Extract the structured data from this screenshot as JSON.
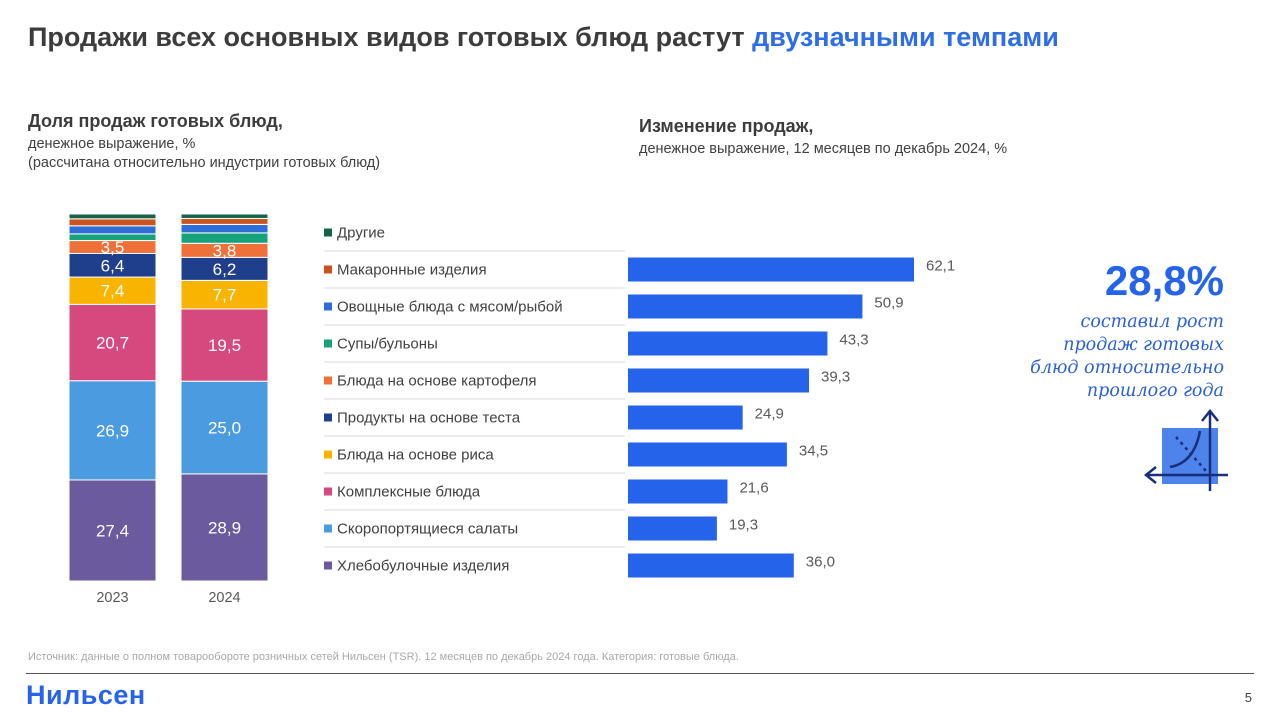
{
  "title": {
    "main": "Продажи всех основных видов готовых блюд растут ",
    "accent": "двузначными темпами"
  },
  "left_subtitle": {
    "heading": "Доля продаж готовых блюд,",
    "line1": "денежное выражение, %",
    "line2": "(рассчитана относительно индустрии готовых блюд)"
  },
  "right_subtitle": {
    "heading": "Изменение продаж,",
    "line1": "денежное выражение, 12 месяцев по декабрь 2024, %"
  },
  "colors": {
    "accent": "#2e6de6",
    "bar": "#2563eb",
    "text": "#404040"
  },
  "chart_data": [
    {
      "type": "bar",
      "stacked": true,
      "categories": [
        "2023",
        "2024"
      ],
      "series": [
        {
          "name": "Хлебобулочные изделия",
          "color": "#6b5b9e",
          "values": [
            27.4,
            28.9
          ]
        },
        {
          "name": "Скоропортящиеся салаты",
          "color": "#4a9be0",
          "values": [
            26.9,
            25.0
          ]
        },
        {
          "name": "Комплексные блюда",
          "color": "#d6497e",
          "values": [
            20.7,
            19.5
          ]
        },
        {
          "name": "Блюда на основе риса",
          "color": "#f8b400",
          "values": [
            7.4,
            7.7
          ]
        },
        {
          "name": "Продукты на основе теста",
          "color": "#1f3f8c",
          "values": [
            6.4,
            6.2
          ]
        },
        {
          "name": "Блюда на основе картофеля",
          "color": "#f0703a",
          "values": [
            3.5,
            3.8
          ]
        },
        {
          "name": "Супы/бульоны",
          "color": "#16a37a",
          "values": [
            1.8,
            2.8
          ]
        },
        {
          "name": "Овощные блюда с мясом/рыбой",
          "color": "#2e6ed6",
          "values": [
            2.2,
            2.3
          ]
        },
        {
          "name": "Макаронные изделия",
          "color": "#c9541f",
          "values": [
            1.9,
            1.6
          ]
        },
        {
          "name": "Другие",
          "color": "#17614a",
          "values": [
            1.3,
            1.2
          ]
        }
      ],
      "labels": [
        [
          "27,4",
          "28,9"
        ],
        [
          "26,9",
          "25,0"
        ],
        [
          "20,7",
          "19,5"
        ],
        [
          "7,4",
          "7,7"
        ],
        [
          "6,4",
          "6,2"
        ],
        [
          "3,5",
          "3,8"
        ],
        [
          "",
          ""
        ],
        [
          "",
          ""
        ],
        [
          "",
          ""
        ],
        [
          "",
          ""
        ]
      ],
      "ylim": [
        0,
        100
      ]
    },
    {
      "type": "bar",
      "orientation": "horizontal",
      "categories": [
        "Другие",
        "Макаронные изделия",
        "Овощные блюда с мясом/рыбой",
        "Супы/бульоны",
        "Блюда на основе картофеля",
        "Продукты на основе теста",
        "Блюда на основе риса",
        "Комплексные блюда",
        "Скоропортящиеся салаты",
        "Хлебобулочные изделия"
      ],
      "legend_colors": [
        "#17614a",
        "#c9541f",
        "#2e6ed6",
        "#16a37a",
        "#f0703a",
        "#1f3f8c",
        "#f8b400",
        "#d6497e",
        "#4a9be0",
        "#6b5b9e"
      ],
      "values": [
        null,
        62.1,
        50.9,
        43.3,
        39.3,
        24.9,
        34.5,
        21.6,
        19.3,
        36.0
      ],
      "value_labels": [
        "",
        "62,1",
        "50,9",
        "43,3",
        "39,3",
        "24,9",
        "34,5",
        "21,6",
        "19,3",
        "36,0"
      ],
      "xlim": [
        0,
        62.1
      ]
    }
  ],
  "callout": {
    "value": "28,8%",
    "line1": "составил рост",
    "line2": "продаж готовых",
    "line3": "блюд относительно",
    "line4": "прошлого года",
    "icon": "growth-chart-icon"
  },
  "footer": {
    "source": "Источник: данные о полном товарообороте розничных сетей Нильсен (TSR). 12 месяцев по декабрь 2024 года. Категория: готовые блюда.",
    "logo": "Нильсен",
    "page": "5"
  }
}
